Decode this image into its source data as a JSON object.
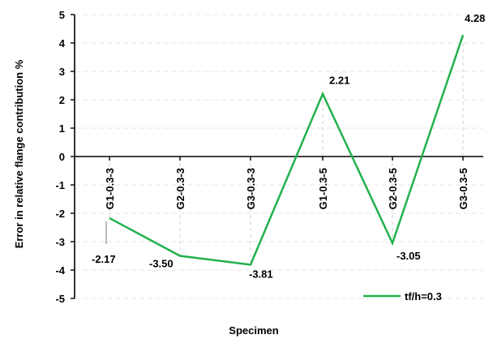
{
  "chart_data": {
    "type": "line",
    "title": "",
    "xlabel": "Specimen",
    "ylabel": "Error in relative flange contribution %",
    "ylim": [
      -5,
      5
    ],
    "yticks": [
      5,
      4,
      3,
      2,
      1,
      0,
      -1,
      -2,
      -3,
      -4,
      -5
    ],
    "grid": true,
    "legend_position": "bottom-right",
    "categories": [
      "G1-0.3-3",
      "G2-0.3-3",
      "G3-0.3-3",
      "G1-0.3-5",
      "G2-0.3-5",
      "G3-0.3-5"
    ],
    "series": [
      {
        "name": "tf/h=0.3",
        "color": "#22b14c",
        "values": [
          -2.17,
          -3.5,
          -3.81,
          2.21,
          -3.05,
          4.28
        ],
        "labels": [
          "-2.17",
          "-3.50",
          "-3.81",
          "2.21",
          "-3.05",
          "4.28"
        ]
      }
    ]
  }
}
